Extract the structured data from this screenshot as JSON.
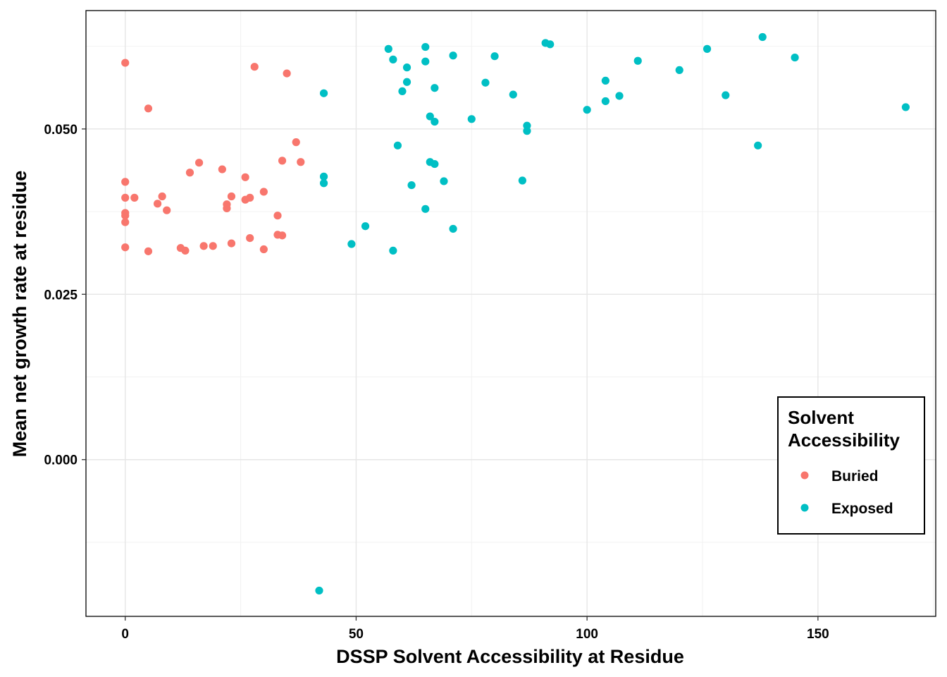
{
  "chart_data": {
    "type": "scatter",
    "xlabel": "DSSP Solvent Accessibility at Residue",
    "ylabel": "Mean net growth rate at residue",
    "xlim": [
      -8.5,
      175.5
    ],
    "ylim": [
      -0.0237,
      0.0679
    ],
    "x_ticks": [
      0,
      50,
      100,
      150
    ],
    "x_tick_labels": [
      "0",
      "50",
      "100",
      "150"
    ],
    "y_ticks": [
      0.0,
      0.025,
      0.05
    ],
    "y_tick_labels": [
      "0.000",
      "0.025",
      "0.050"
    ],
    "grid": true,
    "legend": {
      "title_lines": [
        "Solvent",
        "Accessibility"
      ],
      "placement": "bottom-right"
    },
    "series": [
      {
        "name": "Buried",
        "color": "#F8766D",
        "points": [
          [
            0,
            0.06
          ],
          [
            0,
            0.042
          ],
          [
            0,
            0.0396
          ],
          [
            0,
            0.0373
          ],
          [
            0,
            0.0369
          ],
          [
            0,
            0.0359
          ],
          [
            0,
            0.0321
          ],
          [
            2,
            0.0396
          ],
          [
            5,
            0.0531
          ],
          [
            5,
            0.0315
          ],
          [
            7,
            0.0387
          ],
          [
            8,
            0.0398
          ],
          [
            9,
            0.0377
          ],
          [
            12,
            0.032
          ],
          [
            13,
            0.0316
          ],
          [
            14,
            0.0434
          ],
          [
            16,
            0.0449
          ],
          [
            17,
            0.0323
          ],
          [
            19,
            0.0323
          ],
          [
            21,
            0.0439
          ],
          [
            22,
            0.0386
          ],
          [
            22,
            0.038
          ],
          [
            23,
            0.0398
          ],
          [
            23,
            0.0327
          ],
          [
            26,
            0.0427
          ],
          [
            26,
            0.0393
          ],
          [
            27,
            0.0396
          ],
          [
            27,
            0.0335
          ],
          [
            28,
            0.0594
          ],
          [
            30,
            0.0405
          ],
          [
            30,
            0.0318
          ],
          [
            33,
            0.0369
          ],
          [
            33,
            0.034
          ],
          [
            34,
            0.0452
          ],
          [
            34,
            0.0339
          ],
          [
            35,
            0.0584
          ],
          [
            37,
            0.048
          ],
          [
            38,
            0.045
          ]
        ]
      },
      {
        "name": "Exposed",
        "color": "#00BFC4",
        "points": [
          [
            42,
            -0.0198
          ],
          [
            43,
            0.0554
          ],
          [
            43,
            0.0428
          ],
          [
            43,
            0.0418
          ],
          [
            49,
            0.0326
          ],
          [
            52,
            0.0353
          ],
          [
            57,
            0.0621
          ],
          [
            58,
            0.0605
          ],
          [
            58,
            0.0316
          ],
          [
            59,
            0.0475
          ],
          [
            60,
            0.0557
          ],
          [
            61,
            0.0593
          ],
          [
            61,
            0.0571
          ],
          [
            62,
            0.0415
          ],
          [
            65,
            0.0624
          ],
          [
            65,
            0.0602
          ],
          [
            65,
            0.0379
          ],
          [
            66,
            0.0519
          ],
          [
            66,
            0.045
          ],
          [
            67,
            0.0562
          ],
          [
            67,
            0.0511
          ],
          [
            67,
            0.0447
          ],
          [
            69,
            0.0421
          ],
          [
            71,
            0.0611
          ],
          [
            71,
            0.0349
          ],
          [
            75,
            0.0515
          ],
          [
            78,
            0.057
          ],
          [
            80,
            0.061
          ],
          [
            84,
            0.0552
          ],
          [
            86,
            0.0422
          ],
          [
            87,
            0.0505
          ],
          [
            87,
            0.0497
          ],
          [
            91,
            0.063
          ],
          [
            92,
            0.0628
          ],
          [
            100,
            0.0529
          ],
          [
            104,
            0.0573
          ],
          [
            104,
            0.0542
          ],
          [
            107,
            0.055
          ],
          [
            111,
            0.0603
          ],
          [
            120,
            0.0589
          ],
          [
            126,
            0.0621
          ],
          [
            130,
            0.0551
          ],
          [
            137,
            0.0475
          ],
          [
            138,
            0.0639
          ],
          [
            145,
            0.0608
          ],
          [
            169,
            0.0533
          ]
        ]
      }
    ]
  }
}
